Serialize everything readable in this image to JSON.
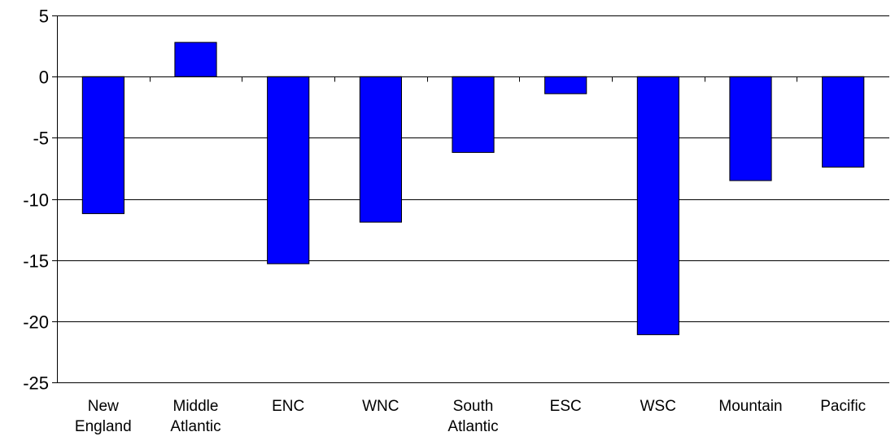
{
  "chart_data": {
    "type": "bar",
    "categories": [
      [
        "New",
        "England"
      ],
      [
        "Middle",
        "Atlantic"
      ],
      [
        "ENC"
      ],
      [
        "WNC"
      ],
      [
        "South",
        "Atlantic"
      ],
      [
        "ESC"
      ],
      [
        "WSC"
      ],
      [
        "Mountain"
      ],
      [
        "Pacific"
      ]
    ],
    "values": [
      -11.2,
      2.8,
      -15.3,
      -11.9,
      -6.2,
      -1.4,
      -21.1,
      -8.5,
      -7.4
    ],
    "ylim": [
      -25,
      5
    ],
    "yticks": [
      5,
      0,
      -5,
      -10,
      -15,
      -20,
      -25
    ],
    "grid": true,
    "bar_color": "#0000FF",
    "bar_edge_color": "#000000",
    "axis_color": "#000000"
  }
}
